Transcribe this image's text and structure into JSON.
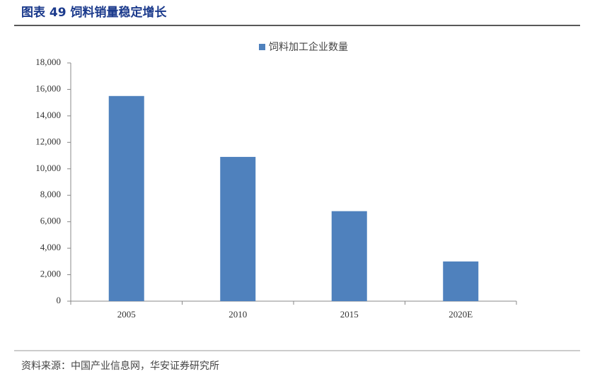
{
  "chart_data": {
    "type": "bar",
    "title": "图表 49 饲料销量稳定增长",
    "series": [
      {
        "name": "饲料加工企业数量",
        "color": "#4f81bd",
        "values": [
          15500,
          10900,
          6800,
          3000
        ]
      }
    ],
    "categories": [
      "2005",
      "2010",
      "2015",
      "2020E"
    ],
    "ylim": [
      0,
      18000
    ],
    "yticks": [
      0,
      {
        "value": 2000,
        "label": "2,000"
      },
      {
        "value": 4000,
        "label": "4,000"
      },
      {
        "value": 6000,
        "label": "6,000"
      },
      {
        "value": 8000,
        "label": "8,000"
      },
      {
        "value": 10000,
        "label": "10,000"
      },
      {
        "value": 12000,
        "label": "12,000"
      },
      {
        "value": 14000,
        "label": "14,000"
      },
      {
        "value": 16000,
        "label": "16,000"
      },
      {
        "value": 18000,
        "label": "18,000"
      }
    ],
    "source": "资料来源：中国产业信息网，华安证券研究所"
  }
}
